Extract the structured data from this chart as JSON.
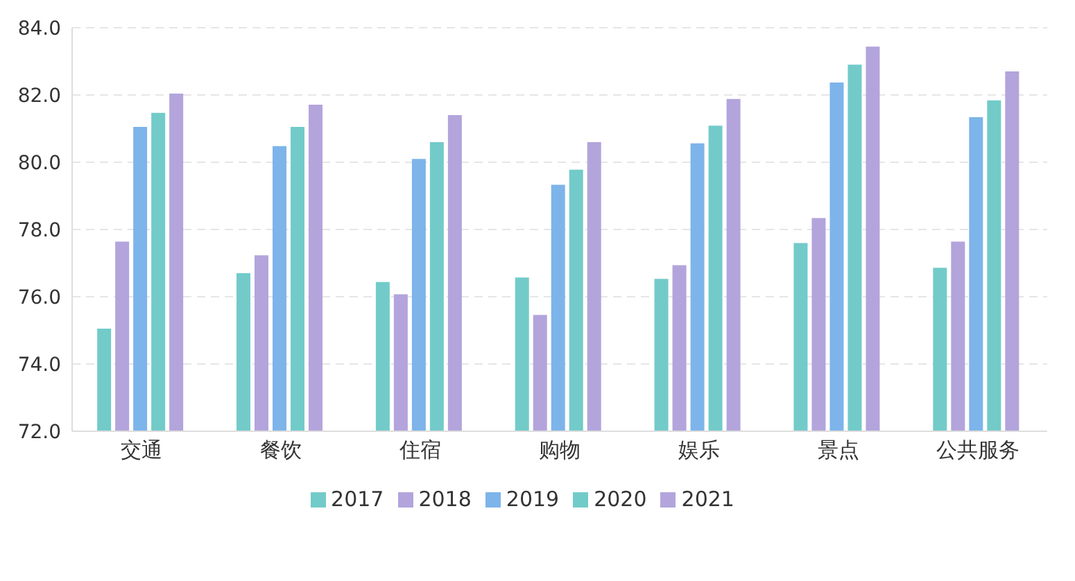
{
  "chart_data": {
    "type": "bar",
    "categories": [
      "交通",
      "餐饮",
      "住宿",
      "购物",
      "娱乐",
      "景点",
      "公共服务"
    ],
    "series": [
      {
        "name": "2017",
        "color": "#72cbc9",
        "values": [
          75.05,
          76.7,
          76.44,
          76.57,
          76.53,
          77.6,
          76.86
        ]
      },
      {
        "name": "2018",
        "color": "#b3a4dc",
        "values": [
          77.64,
          77.23,
          76.07,
          75.46,
          76.94,
          78.34,
          77.64
        ]
      },
      {
        "name": "2019",
        "color": "#7db4ea",
        "values": [
          81.05,
          80.48,
          80.1,
          79.33,
          80.56,
          82.37,
          81.34
        ]
      },
      {
        "name": "2020",
        "color": "#72cbc9",
        "values": [
          81.47,
          81.05,
          80.6,
          79.78,
          81.09,
          82.9,
          81.84
        ]
      },
      {
        "name": "2021",
        "color": "#b3a4dc",
        "values": [
          82.04,
          81.71,
          81.4,
          80.6,
          81.88,
          83.44,
          82.7
        ]
      }
    ],
    "ylim": [
      72,
      84
    ],
    "yticks": [
      {
        "value": 72,
        "label": "72.0"
      },
      {
        "value": 74,
        "label": "74.0"
      },
      {
        "value": 76,
        "label": "76.0"
      },
      {
        "value": 78,
        "label": "78.0"
      },
      {
        "value": 80,
        "label": "80.0"
      },
      {
        "value": 82,
        "label": "82.0"
      },
      {
        "value": 84,
        "label": "84.0"
      }
    ],
    "grid": "y",
    "legend": "bottom"
  }
}
